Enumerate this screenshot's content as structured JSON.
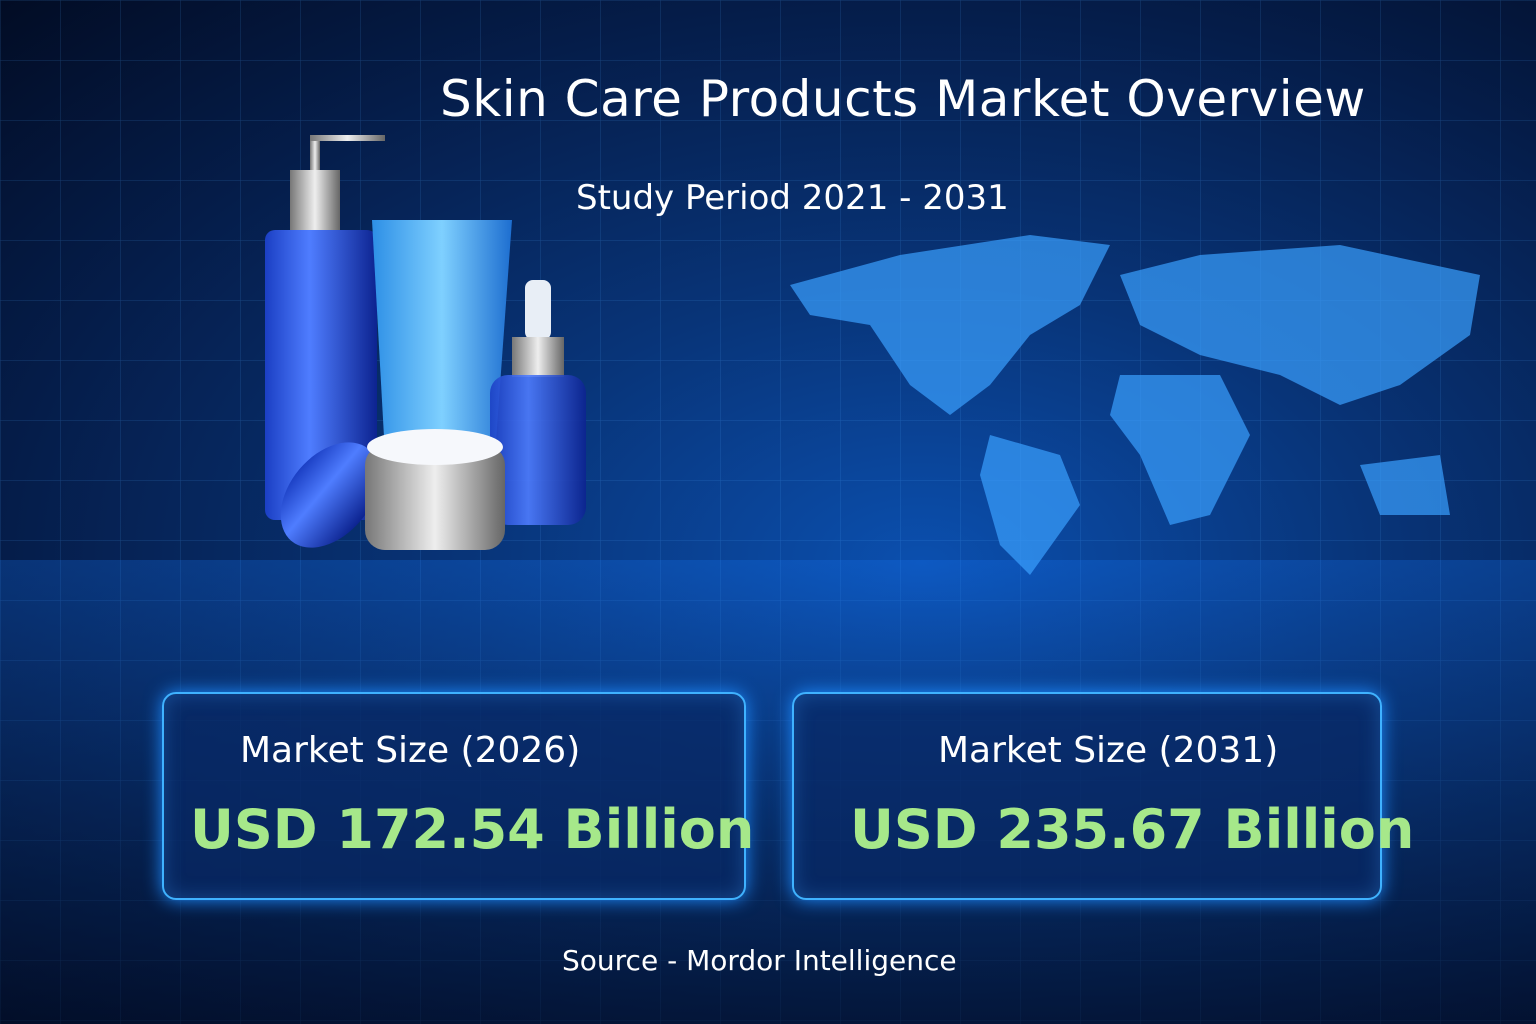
{
  "title": "Skin Care Products Market Overview",
  "study_period": "Study Period  2021 - 2031",
  "cards": [
    {
      "label": "Market Size (2026)",
      "value": "USD 172.54 Billion"
    },
    {
      "label": "Market Size (2031)",
      "value": "USD 235.67 Billion"
    }
  ],
  "source": "Source - Mordor Intelligence",
  "colors": {
    "value_green": "#a6e88a",
    "border_blue": "#3fb2ff"
  }
}
